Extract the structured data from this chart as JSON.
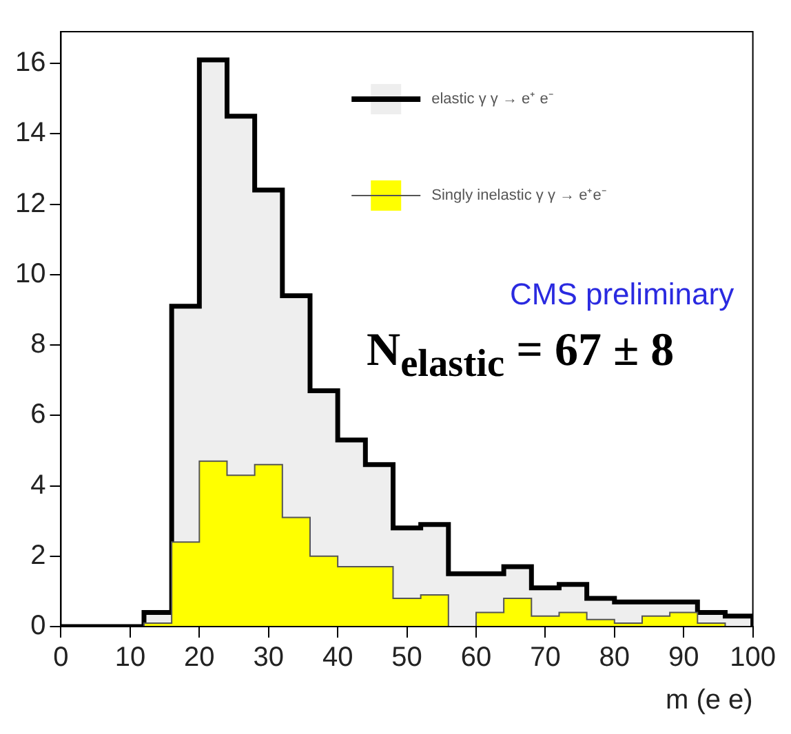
{
  "chart_data": {
    "type": "histogram",
    "xlabel": "m (e e)",
    "bins": [
      0,
      4,
      8,
      12,
      16,
      20,
      24,
      28,
      32,
      36,
      40,
      44,
      48,
      52,
      56,
      60,
      64,
      68,
      72,
      76,
      80,
      84,
      88,
      92,
      96,
      100
    ],
    "series": [
      {
        "name": "elastic γ γ → e⁺ e⁻",
        "color": "#eeeeee",
        "values": [
          0,
          0,
          0,
          0.4,
          9.1,
          16.1,
          14.5,
          12.4,
          9.4,
          6.7,
          5.3,
          4.6,
          2.8,
          2.9,
          1.5,
          1.5,
          1.7,
          1.1,
          1.2,
          0.8,
          0.7,
          0.7,
          0.7,
          0.4,
          0.3
        ]
      },
      {
        "name": "Singly inelastic γ γ → e⁺e⁻",
        "color": "#ffff00",
        "values": [
          0,
          0,
          0,
          0.1,
          2.4,
          4.7,
          4.3,
          4.6,
          3.1,
          2.0,
          1.7,
          1.7,
          0.8,
          0.9,
          0,
          0.4,
          0.8,
          0.3,
          0.4,
          0.2,
          0.1,
          0.3,
          0.4,
          0.1,
          0
        ]
      }
    ],
    "xlim": [
      0,
      100
    ],
    "xticks": [
      0,
      10,
      20,
      30,
      40,
      50,
      60,
      70,
      80,
      90,
      100
    ],
    "ylim": [
      0,
      16.9
    ],
    "yticks": [
      0,
      2,
      4,
      6,
      8,
      10,
      12,
      14,
      16
    ],
    "grid": false,
    "legend": "top right",
    "annotations": [
      "CMS preliminary",
      "N$_{elastic}$ = 67 ± 8"
    ]
  }
}
